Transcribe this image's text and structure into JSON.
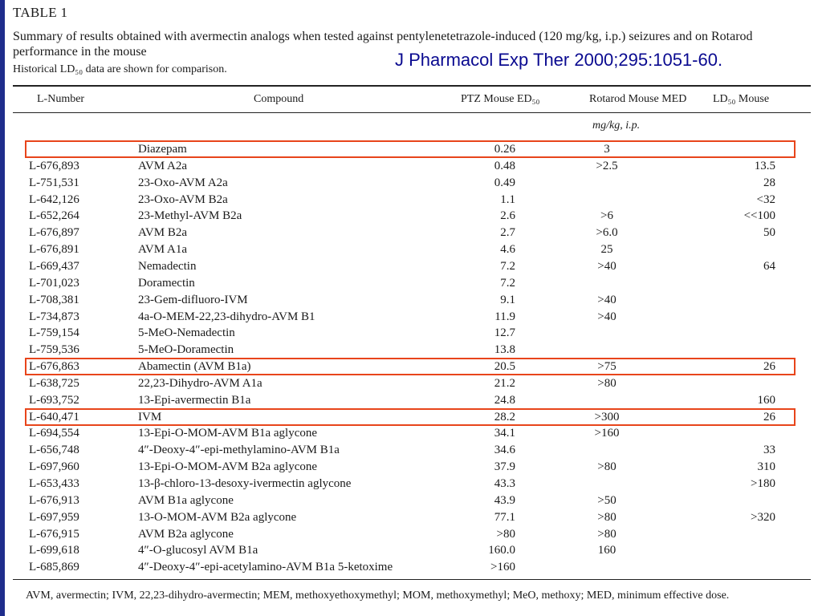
{
  "table_label": "TABLE 1",
  "caption": "Summary of results obtained with avermectin analogs when tested against pentylenetetrazole-induced (120 mg/kg, i.p.) seizures and on Rotarod performance in the mouse",
  "historical_note": "Historical LD₅₀ data are shown for comparison.",
  "citation": "J Pharmacol Exp Ther 2000;295:1051-60.",
  "headers": {
    "l_number": "L-Number",
    "compound": "Compound",
    "ptz": "PTZ Mouse ED₅₀",
    "rotarod": "Rotarod Mouse MED",
    "ld50": "LD₅₀ Mouse"
  },
  "units": "mg/kg, i.p.",
  "rows": [
    {
      "num": "",
      "compound": "Diazepam",
      "ptz": "0.26",
      "rot": "3",
      "ld": ""
    },
    {
      "num": "L-676,893",
      "compound": "AVM A2a",
      "ptz": "0.48",
      "rot": ">2.5",
      "ld": "13.5"
    },
    {
      "num": "L-751,531",
      "compound": "23-Oxo-AVM A2a",
      "ptz": "0.49",
      "rot": "",
      "ld": "28"
    },
    {
      "num": "L-642,126",
      "compound": "23-Oxo-AVM B2a",
      "ptz": "1.1",
      "rot": "",
      "ld": "<32"
    },
    {
      "num": "L-652,264",
      "compound": "23-Methyl-AVM B2a",
      "ptz": "2.6",
      "rot": ">6",
      "ld": "<<100"
    },
    {
      "num": "L-676,897",
      "compound": "AVM B2a",
      "ptz": "2.7",
      "rot": ">6.0",
      "ld": "50"
    },
    {
      "num": "L-676,891",
      "compound": "AVM A1a",
      "ptz": "4.6",
      "rot": "25",
      "ld": ""
    },
    {
      "num": "L-669,437",
      "compound": "Nemadectin",
      "ptz": "7.2",
      "rot": ">40",
      "ld": "64"
    },
    {
      "num": "L-701,023",
      "compound": "Doramectin",
      "ptz": "7.2",
      "rot": "",
      "ld": ""
    },
    {
      "num": "L-708,381",
      "compound": "23-Gem-difluoro-IVM",
      "ptz": "9.1",
      "rot": ">40",
      "ld": ""
    },
    {
      "num": "L-734,873",
      "compound": "4a-O-MEM-22,23-dihydro-AVM B1",
      "ptz": "11.9",
      "rot": ">40",
      "ld": ""
    },
    {
      "num": "L-759,154",
      "compound": "5-MeO-Nemadectin",
      "ptz": "12.7",
      "rot": "",
      "ld": ""
    },
    {
      "num": "L-759,536",
      "compound": "5-MeO-Doramectin",
      "ptz": "13.8",
      "rot": "",
      "ld": ""
    },
    {
      "num": "L-676,863",
      "compound": "Abamectin (AVM B1a)",
      "ptz": "20.5",
      "rot": ">75",
      "ld": "26"
    },
    {
      "num": "L-638,725",
      "compound": "22,23-Dihydro-AVM A1a",
      "ptz": "21.2",
      "rot": ">80",
      "ld": ""
    },
    {
      "num": "L-693,752",
      "compound": "13-Epi-avermectin B1a",
      "ptz": "24.8",
      "rot": "",
      "ld": "160"
    },
    {
      "num": "L-640,471",
      "compound": "IVM",
      "ptz": "28.2",
      "rot": ">300",
      "ld": "26"
    },
    {
      "num": "L-694,554",
      "compound": "13-Epi-O-MOM-AVM B1a aglycone",
      "ptz": "34.1",
      "rot": ">160",
      "ld": ""
    },
    {
      "num": "L-656,748",
      "compound": "4″-Deoxy-4″-epi-methylamino-AVM B1a",
      "ptz": "34.6",
      "rot": "",
      "ld": "33"
    },
    {
      "num": "L-697,960",
      "compound": "13-Epi-O-MOM-AVM B2a aglycone",
      "ptz": "37.9",
      "rot": ">80",
      "ld": "310"
    },
    {
      "num": "L-653,433",
      "compound": "13-β-chloro-13-desoxy-ivermectin aglycone",
      "ptz": "43.3",
      "rot": "",
      "ld": ">180"
    },
    {
      "num": "L-676,913",
      "compound": "AVM B1a aglycone",
      "ptz": "43.9",
      "rot": ">50",
      "ld": ""
    },
    {
      "num": "L-697,959",
      "compound": "13-O-MOM-AVM B2a aglycone",
      "ptz": "77.1",
      "rot": ">80",
      "ld": ">320"
    },
    {
      "num": "L-676,915",
      "compound": "AVM B2a aglycone",
      "ptz": ">80",
      "rot": ">80",
      "ld": ""
    },
    {
      "num": "L-699,618",
      "compound": "4″-O-glucosyl AVM B1a",
      "ptz": "160.0",
      "rot": "160",
      "ld": ""
    },
    {
      "num": "L-685,869",
      "compound": "4″-Deoxy-4″-epi-acetylamino-AVM B1a 5-ketoxime",
      "ptz": ">160",
      "rot": "",
      "ld": ""
    }
  ],
  "highlighted_rows": [
    0,
    13,
    16
  ],
  "highlight_color": "#e8451b",
  "footnote": "AVM, avermectin; IVM, 22,23-dihydro-avermectin; MEM, methoxyethoxymethyl; MOM, methoxymethyl; MeO, methoxy; MED, minimum effective dose."
}
